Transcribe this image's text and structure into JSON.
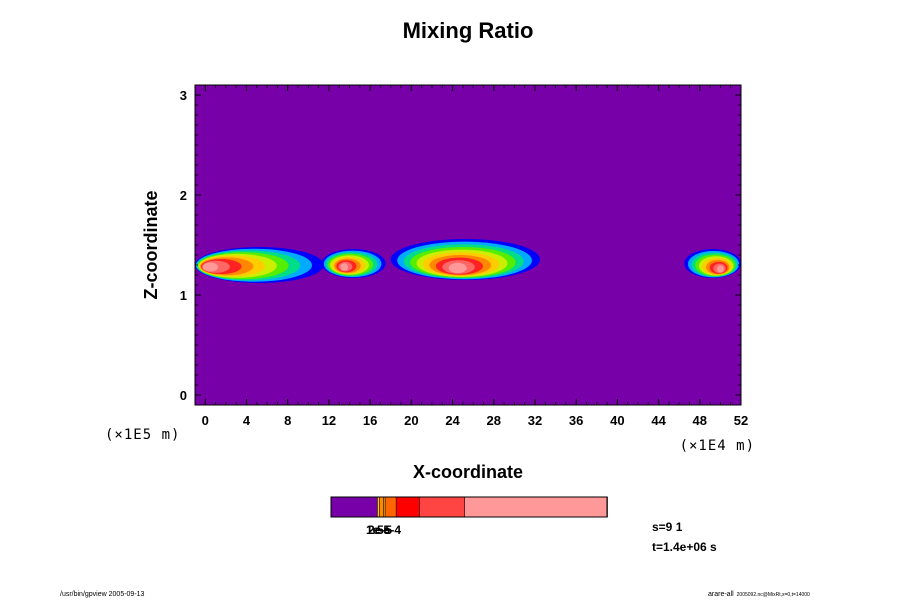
{
  "chart_data": {
    "type": "heatmap",
    "title": "Mixing Ratio",
    "xlabel": "X-coordinate",
    "ylabel": "Z-coordinate",
    "x_unit_label": "(×1E4 m)",
    "y_unit_label": "(×1E5 m)",
    "xlim": [
      -1,
      52
    ],
    "ylim": [
      -0.1,
      3.1
    ],
    "x_ticks": [
      0,
      4,
      8,
      12,
      16,
      20,
      24,
      28,
      32,
      36,
      40,
      44,
      48,
      52
    ],
    "y_ticks": [
      0,
      1,
      2,
      3
    ],
    "background_color": "#7700a8",
    "field_colors": [
      "#0000ff",
      "#00aaff",
      "#00dd88",
      "#55ee00",
      "#ccee00",
      "#ffcc00",
      "#ff8800",
      "#ff2222",
      "#ff6666",
      "#ff9999"
    ],
    "plumes": [
      {
        "x_start": -1,
        "x_end": 11.5,
        "z_low": 1.12,
        "z_high": 1.48,
        "core_x": 0.5,
        "core_z": 1.28
      },
      {
        "x_start": 11.3,
        "x_end": 17.5,
        "z_low": 1.17,
        "z_high": 1.46,
        "core_x": 13.5,
        "core_z": 1.28
      },
      {
        "x_start": 18.0,
        "x_end": 32.5,
        "z_low": 1.15,
        "z_high": 1.56,
        "core_x": 24.5,
        "core_z": 1.27
      },
      {
        "x_start": 46.5,
        "x_end": 52,
        "z_low": 1.17,
        "z_high": 1.46,
        "core_x": 50.0,
        "core_z": 1.26
      }
    ],
    "colorbar": {
      "segments": [
        {
          "color": "#7700a8",
          "width": 0.168
        },
        {
          "color": "#ffcc00",
          "width": 0.007
        },
        {
          "color": "#ff8800",
          "width": 0.015
        },
        {
          "color": "#ffaa00",
          "width": 0.006
        },
        {
          "color": "#ff6600",
          "width": 0.04
        },
        {
          "color": "#ff0000",
          "width": 0.084
        },
        {
          "color": "#ff4444",
          "width": 0.164
        },
        {
          "color": "#ff9999",
          "width": 0.516
        }
      ],
      "labels": [
        "1e-5",
        "2e-5",
        "5e-4"
      ]
    },
    "info": {
      "step": "s=9 1",
      "time": "t=1.4e+06 s"
    },
    "footer_left": "/usr/bin/gpview 2005-09-13",
    "footer_right_main": "arare-all",
    "footer_right_sub": "2005092.nc@MixRt,x=0,t=14000"
  }
}
